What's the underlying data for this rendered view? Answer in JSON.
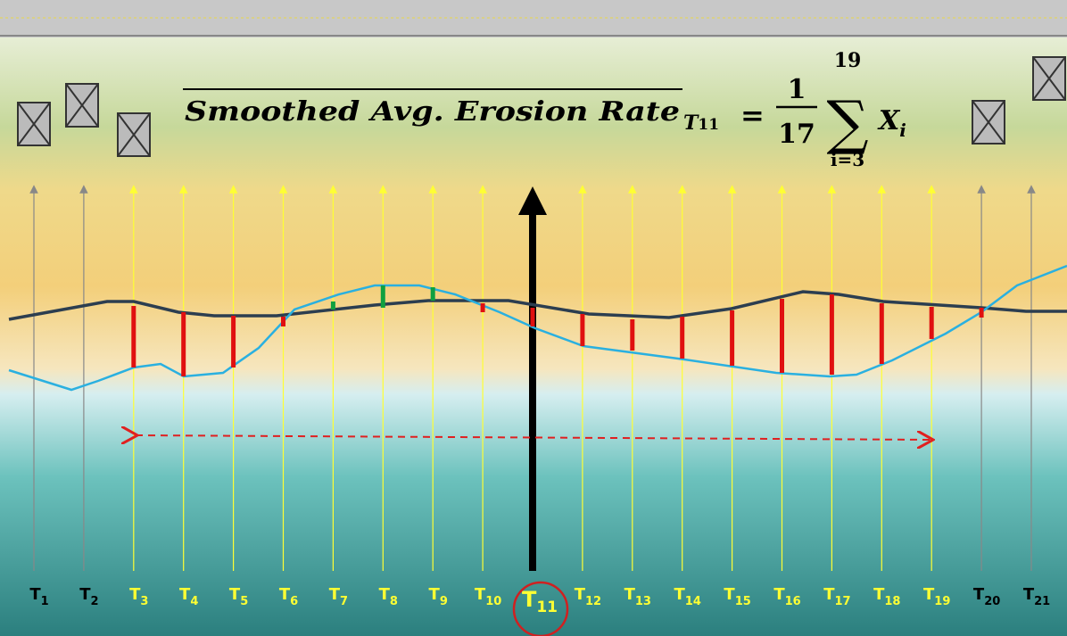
{
  "formula": {
    "overline_text": "Smoothed Avg. Erosion Rate",
    "subscript_base": "T",
    "subscript_sub": "11",
    "equals": "=",
    "numerator": "1",
    "denominator": "17",
    "sum_symbol": "∑",
    "sum_upper": "19",
    "sum_lower": "i=3",
    "term_base": "X",
    "term_sub": "i"
  },
  "transects": [
    {
      "base": "T",
      "sub": "1"
    },
    {
      "base": "T",
      "sub": "2"
    },
    {
      "base": "T",
      "sub": "3"
    },
    {
      "base": "T",
      "sub": "4"
    },
    {
      "base": "T",
      "sub": "5"
    },
    {
      "base": "T",
      "sub": "6"
    },
    {
      "base": "T",
      "sub": "7"
    },
    {
      "base": "T",
      "sub": "8"
    },
    {
      "base": "T",
      "sub": "9"
    },
    {
      "base": "T",
      "sub": "10"
    },
    {
      "base": "T",
      "sub": "11"
    },
    {
      "base": "T",
      "sub": "12"
    },
    {
      "base": "T",
      "sub": "13"
    },
    {
      "base": "T",
      "sub": "14"
    },
    {
      "base": "T",
      "sub": "15"
    },
    {
      "base": "T",
      "sub": "16"
    },
    {
      "base": "T",
      "sub": "17"
    },
    {
      "base": "T",
      "sub": "18"
    },
    {
      "base": "T",
      "sub": "19"
    },
    {
      "base": "T",
      "sub": "20"
    },
    {
      "base": "T",
      "sub": "21"
    }
  ]
}
